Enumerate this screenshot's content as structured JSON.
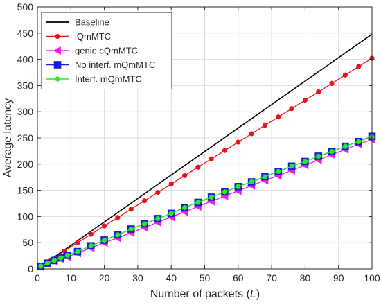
{
  "chart_data": {
    "type": "line",
    "title": "",
    "xlabel": "Number of packets (",
    "xlabel_var": "L",
    "xlabel_end": ")",
    "ylabel": "Average latency",
    "xlim": [
      0,
      100
    ],
    "ylim": [
      0,
      500
    ],
    "xticks": [
      0,
      10,
      20,
      30,
      40,
      50,
      60,
      70,
      80,
      90,
      100
    ],
    "yticks": [
      0,
      50,
      100,
      150,
      200,
      250,
      300,
      350,
      400,
      450,
      500
    ],
    "grid": true,
    "legend_position": "top-left",
    "series": [
      {
        "name": "Baseline",
        "color": "#000000",
        "marker": "none",
        "x": [
          1,
          100
        ],
        "y": [
          4.5,
          448
        ]
      },
      {
        "name": "iQmMTC",
        "color": "#e8141a",
        "marker": "circle",
        "x": [
          1,
          4,
          8,
          12,
          16,
          20,
          24,
          28,
          32,
          36,
          40,
          44,
          48,
          52,
          56,
          60,
          64,
          68,
          72,
          76,
          80,
          84,
          88,
          92,
          96,
          100
        ],
        "y": [
          4,
          16,
          34,
          50,
          66,
          82,
          98,
          114,
          130,
          146,
          162,
          178,
          194,
          210,
          226,
          242,
          258,
          274,
          290,
          306,
          322,
          338,
          354,
          370,
          386,
          402
        ]
      },
      {
        "name": "genie cQmMTC",
        "color": "#ee1ee4",
        "marker": "triangle-left",
        "x": [
          1,
          3,
          5,
          7,
          9,
          12,
          16,
          20,
          24,
          28,
          32,
          36,
          40,
          44,
          48,
          52,
          56,
          60,
          64,
          68,
          72,
          76,
          80,
          84,
          88,
          92,
          96,
          100
        ],
        "y": [
          4,
          10,
          15,
          19,
          23,
          30,
          40,
          50,
          59,
          69,
          79,
          89,
          99,
          109,
          119,
          129,
          139,
          149,
          159,
          169,
          178,
          188,
          198,
          208,
          218,
          228,
          238,
          247
        ]
      },
      {
        "name": "No interf. mQmMTC",
        "color": "#1a1adb",
        "marker": "square",
        "x": [
          1,
          3,
          5,
          7,
          9,
          12,
          16,
          20,
          24,
          28,
          32,
          36,
          40,
          44,
          48,
          52,
          56,
          60,
          64,
          68,
          72,
          76,
          80,
          84,
          88,
          92,
          96,
          100
        ],
        "y": [
          5,
          11,
          16,
          21,
          26,
          33,
          44,
          55,
          65,
          76,
          86,
          96,
          106,
          117,
          127,
          137,
          147,
          157,
          166,
          176,
          186,
          196,
          205,
          215,
          224,
          234,
          243,
          253
        ]
      },
      {
        "name": "Interf. mQmMTC",
        "color": "#22ee22",
        "marker": "circle",
        "x": [
          1,
          3,
          5,
          7,
          9,
          12,
          16,
          20,
          24,
          28,
          32,
          36,
          40,
          44,
          48,
          52,
          56,
          60,
          64,
          68,
          72,
          76,
          80,
          84,
          88,
          92,
          96,
          100
        ],
        "y": [
          5,
          11,
          16,
          21,
          26,
          33,
          44,
          55,
          65,
          76,
          86,
          96,
          106,
          117,
          127,
          137,
          147,
          157,
          166,
          176,
          186,
          196,
          205,
          215,
          224,
          234,
          243,
          252
        ]
      }
    ]
  }
}
